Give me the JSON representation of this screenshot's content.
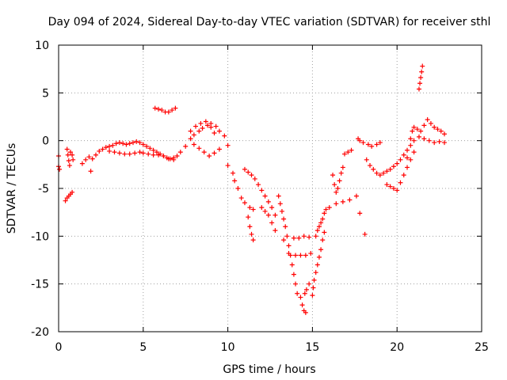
{
  "chart_data": {
    "type": "scatter",
    "title": "Day 094 of 2024, Sidereal Day-to-day VTEC variation (SDTVAR) for receiver sthl",
    "xlabel": "GPS time / hours",
    "ylabel": "SDTVAR / TECUs",
    "xlim": [
      0,
      25
    ],
    "ylim": [
      -20,
      10
    ],
    "xticks": [
      0,
      5,
      10,
      15,
      20,
      25
    ],
    "yticks": [
      10,
      5,
      0,
      -5,
      -10,
      -15,
      -20
    ],
    "grid": true,
    "marker": "+",
    "series_color": "#ff0000",
    "series": [
      {
        "name": "SDTVAR",
        "points": [
          [
            0.0,
            -1.6
          ],
          [
            0.0,
            -2.7
          ],
          [
            0.05,
            -3.0
          ],
          [
            0.4,
            -6.3
          ],
          [
            0.5,
            -6.0
          ],
          [
            0.6,
            -5.8
          ],
          [
            0.7,
            -5.6
          ],
          [
            0.8,
            -5.4
          ],
          [
            0.5,
            -0.9
          ],
          [
            0.55,
            -1.5
          ],
          [
            0.6,
            -2.1
          ],
          [
            0.65,
            -2.6
          ],
          [
            0.7,
            -1.2
          ],
          [
            0.8,
            -1.5
          ],
          [
            0.85,
            -2.0
          ],
          [
            1.4,
            -2.4
          ],
          [
            1.6,
            -2.0
          ],
          [
            1.8,
            -1.7
          ],
          [
            1.9,
            -3.2
          ],
          [
            2.0,
            -1.9
          ],
          [
            2.2,
            -1.5
          ],
          [
            2.4,
            -1.1
          ],
          [
            2.6,
            -0.9
          ],
          [
            2.8,
            -0.7
          ],
          [
            3.0,
            -0.6
          ],
          [
            3.2,
            -0.5
          ],
          [
            3.4,
            -0.3
          ],
          [
            3.6,
            -0.2
          ],
          [
            3.8,
            -0.3
          ],
          [
            4.0,
            -0.4
          ],
          [
            4.2,
            -0.3
          ],
          [
            4.4,
            -0.2
          ],
          [
            4.6,
            -0.1
          ],
          [
            4.8,
            -0.2
          ],
          [
            3.0,
            -1.1
          ],
          [
            3.3,
            -1.2
          ],
          [
            3.6,
            -1.3
          ],
          [
            3.9,
            -1.4
          ],
          [
            4.2,
            -1.4
          ],
          [
            4.5,
            -1.3
          ],
          [
            4.8,
            -1.2
          ],
          [
            5.0,
            -0.4
          ],
          [
            5.2,
            -0.6
          ],
          [
            5.4,
            -0.8
          ],
          [
            5.6,
            -1.0
          ],
          [
            5.8,
            -1.2
          ],
          [
            6.0,
            -1.4
          ],
          [
            6.2,
            -1.6
          ],
          [
            6.4,
            -1.8
          ],
          [
            6.6,
            -1.9
          ],
          [
            6.8,
            -1.8
          ],
          [
            7.0,
            -1.6
          ],
          [
            5.0,
            -1.3
          ],
          [
            5.3,
            -1.4
          ],
          [
            5.6,
            -1.5
          ],
          [
            5.9,
            -1.5
          ],
          [
            6.2,
            -1.6
          ],
          [
            6.5,
            -1.9
          ],
          [
            6.8,
            -2.0
          ],
          [
            5.7,
            3.4
          ],
          [
            5.9,
            3.3
          ],
          [
            6.1,
            3.2
          ],
          [
            6.3,
            3.0
          ],
          [
            6.5,
            3.0
          ],
          [
            6.7,
            3.2
          ],
          [
            6.9,
            3.4
          ],
          [
            7.2,
            -1.2
          ],
          [
            7.5,
            -0.6
          ],
          [
            7.8,
            0.2
          ],
          [
            8.0,
            0.6
          ],
          [
            8.3,
            1.0
          ],
          [
            8.5,
            1.3
          ],
          [
            8.8,
            1.6
          ],
          [
            9.0,
            1.8
          ],
          [
            9.3,
            1.5
          ],
          [
            9.5,
            1.0
          ],
          [
            9.8,
            0.5
          ],
          [
            10.0,
            -0.5
          ],
          [
            7.8,
            1.0
          ],
          [
            8.1,
            1.5
          ],
          [
            8.4,
            1.8
          ],
          [
            8.7,
            2.0
          ],
          [
            9.0,
            1.4
          ],
          [
            9.2,
            0.8
          ],
          [
            8.0,
            -0.4
          ],
          [
            8.3,
            -0.8
          ],
          [
            8.6,
            -1.2
          ],
          [
            8.9,
            -1.6
          ],
          [
            9.2,
            -1.3
          ],
          [
            9.5,
            -0.9
          ],
          [
            10.0,
            -2.6
          ],
          [
            10.3,
            -3.4
          ],
          [
            10.4,
            -4.2
          ],
          [
            10.6,
            -5.0
          ],
          [
            10.8,
            -6.0
          ],
          [
            11.0,
            -6.5
          ],
          [
            11.3,
            -7.0
          ],
          [
            11.5,
            -7.2
          ],
          [
            11.0,
            -3.0
          ],
          [
            11.2,
            -3.3
          ],
          [
            11.4,
            -3.6
          ],
          [
            11.6,
            -4.0
          ],
          [
            11.8,
            -4.6
          ],
          [
            12.0,
            -5.2
          ],
          [
            12.2,
            -5.8
          ],
          [
            12.4,
            -6.4
          ],
          [
            12.6,
            -7.0
          ],
          [
            12.8,
            -7.8
          ],
          [
            11.2,
            -8.0
          ],
          [
            11.3,
            -9.0
          ],
          [
            11.4,
            -9.8
          ],
          [
            11.5,
            -10.4
          ],
          [
            12.0,
            -7.0
          ],
          [
            12.2,
            -7.4
          ],
          [
            12.4,
            -7.8
          ],
          [
            12.6,
            -8.6
          ],
          [
            12.8,
            -9.4
          ],
          [
            13.0,
            -5.8
          ],
          [
            13.1,
            -6.6
          ],
          [
            13.2,
            -7.4
          ],
          [
            13.3,
            -8.2
          ],
          [
            13.4,
            -9.0
          ],
          [
            13.5,
            -10.0
          ],
          [
            13.6,
            -11.0
          ],
          [
            13.7,
            -12.0
          ],
          [
            13.8,
            -13.0
          ],
          [
            13.9,
            -14.0
          ],
          [
            14.0,
            -15.0
          ],
          [
            13.3,
            -10.4
          ],
          [
            13.6,
            -11.8
          ],
          [
            14.0,
            -12.0
          ],
          [
            14.3,
            -12.0
          ],
          [
            14.6,
            -12.0
          ],
          [
            14.9,
            -11.8
          ],
          [
            13.9,
            -10.2
          ],
          [
            14.2,
            -10.2
          ],
          [
            14.5,
            -10.0
          ],
          [
            14.8,
            -10.1
          ],
          [
            14.1,
            -16.0
          ],
          [
            14.3,
            -16.4
          ],
          [
            14.4,
            -17.2
          ],
          [
            14.5,
            -17.8
          ],
          [
            14.6,
            -18.0
          ],
          [
            14.55,
            -16.0
          ],
          [
            14.65,
            -15.6
          ],
          [
            14.8,
            -15.0
          ],
          [
            15.0,
            -16.2
          ],
          [
            15.05,
            -15.4
          ],
          [
            15.1,
            -14.6
          ],
          [
            15.2,
            -13.8
          ],
          [
            15.3,
            -13.0
          ],
          [
            15.4,
            -12.2
          ],
          [
            15.5,
            -11.4
          ],
          [
            15.6,
            -10.4
          ],
          [
            15.7,
            -9.6
          ],
          [
            15.2,
            -10.0
          ],
          [
            15.3,
            -9.4
          ],
          [
            15.4,
            -9.0
          ],
          [
            15.5,
            -8.6
          ],
          [
            15.6,
            -8.2
          ],
          [
            15.7,
            -7.6
          ],
          [
            15.8,
            -7.2
          ],
          [
            16.0,
            -7.0
          ],
          [
            16.4,
            -6.6
          ],
          [
            16.8,
            -6.4
          ],
          [
            17.2,
            -6.2
          ],
          [
            17.6,
            -5.8
          ],
          [
            16.2,
            -3.6
          ],
          [
            16.3,
            -4.6
          ],
          [
            16.4,
            -5.4
          ],
          [
            16.5,
            -5.0
          ],
          [
            16.6,
            -4.2
          ],
          [
            16.7,
            -3.4
          ],
          [
            16.8,
            -2.8
          ],
          [
            16.9,
            -1.4
          ],
          [
            17.1,
            -1.2
          ],
          [
            17.3,
            -1.0
          ],
          [
            17.8,
            -7.6
          ],
          [
            18.1,
            -9.8
          ],
          [
            17.7,
            0.2
          ],
          [
            17.8,
            0.0
          ],
          [
            18.0,
            -0.2
          ],
          [
            18.3,
            -0.4
          ],
          [
            18.5,
            -0.6
          ],
          [
            18.8,
            -0.4
          ],
          [
            19.0,
            -0.2
          ],
          [
            18.2,
            -2.0
          ],
          [
            18.4,
            -2.6
          ],
          [
            18.6,
            -3.0
          ],
          [
            18.8,
            -3.4
          ],
          [
            19.0,
            -3.6
          ],
          [
            19.2,
            -3.4
          ],
          [
            19.4,
            -3.2
          ],
          [
            19.6,
            -3.0
          ],
          [
            19.8,
            -2.7
          ],
          [
            20.0,
            -2.4
          ],
          [
            20.2,
            -2.0
          ],
          [
            20.4,
            -1.5
          ],
          [
            20.6,
            -1.0
          ],
          [
            20.8,
            -0.5
          ],
          [
            21.0,
            0.0
          ],
          [
            19.4,
            -4.6
          ],
          [
            19.6,
            -4.8
          ],
          [
            19.8,
            -5.0
          ],
          [
            20.0,
            -5.2
          ],
          [
            20.2,
            -4.4
          ],
          [
            20.4,
            -3.6
          ],
          [
            20.6,
            -2.8
          ],
          [
            20.8,
            -2.0
          ],
          [
            21.0,
            -1.2
          ],
          [
            20.6,
            -1.8
          ],
          [
            20.8,
            0.2
          ],
          [
            20.9,
            1.0
          ],
          [
            21.0,
            1.4
          ],
          [
            21.2,
            1.2
          ],
          [
            21.4,
            1.0
          ],
          [
            21.6,
            1.6
          ],
          [
            21.8,
            2.2
          ],
          [
            22.0,
            1.8
          ],
          [
            22.2,
            1.4
          ],
          [
            22.4,
            1.2
          ],
          [
            22.6,
            1.0
          ],
          [
            22.8,
            0.7
          ],
          [
            21.3,
            0.4
          ],
          [
            21.6,
            0.2
          ],
          [
            21.9,
            0.0
          ],
          [
            22.2,
            -0.2
          ],
          [
            22.5,
            -0.1
          ],
          [
            22.8,
            -0.2
          ],
          [
            21.3,
            5.4
          ],
          [
            21.35,
            6.0
          ],
          [
            21.4,
            6.6
          ],
          [
            21.45,
            7.2
          ],
          [
            21.5,
            7.8
          ]
        ]
      }
    ]
  }
}
